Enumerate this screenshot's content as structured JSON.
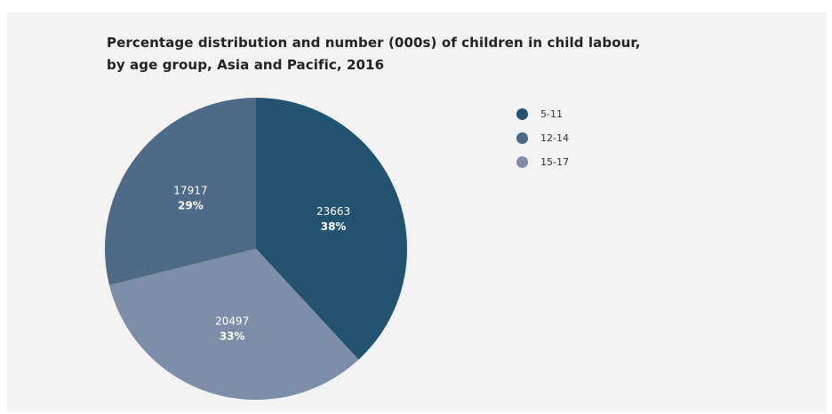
{
  "chart_data": {
    "type": "pie",
    "title": [
      "Percentage distribution and number (000s) of children in child labour,",
      "by age group, Asia and Pacific, 2016"
    ],
    "slices": [
      {
        "name": "5-11",
        "value": 23663,
        "percent_label": "38%",
        "color": "#23536f"
      },
      {
        "name": "15-17",
        "value": 20497,
        "percent_label": "33%",
        "color": "#7e8ea8"
      },
      {
        "name": "12-14",
        "value": 17917,
        "percent_label": "29%",
        "color": "#4d6a87"
      }
    ],
    "legend": {
      "placement": "right",
      "items": [
        {
          "label": "5-11",
          "color": "#23536f"
        },
        {
          "label": "12-14",
          "color": "#4d6a87"
        },
        {
          "label": "15-17",
          "color": "#7e8ea8"
        }
      ]
    }
  }
}
